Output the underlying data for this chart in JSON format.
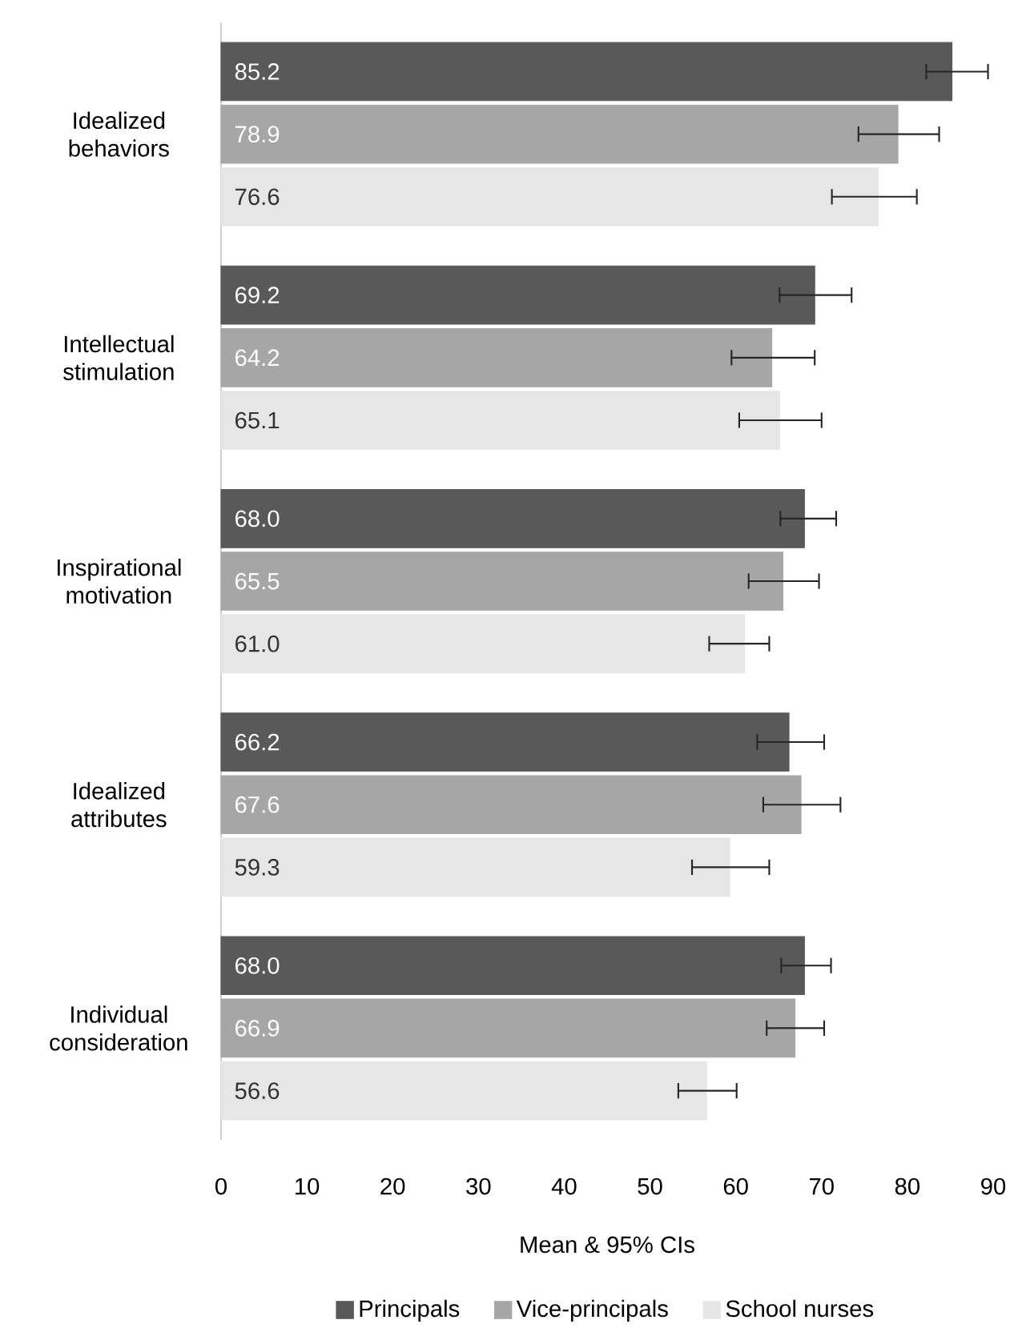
{
  "chart_data": {
    "type": "bar",
    "orientation": "horizontal",
    "xlabel": "Mean & 95% CIs",
    "categories": [
      "Idealized behaviors",
      "Intellectual stimulation",
      "Inspirational motivation",
      "Idealized attributes",
      "Individual consideration"
    ],
    "series": [
      {
        "name": "Principals",
        "color": "#595959",
        "values": [
          85.2,
          69.2,
          68.0,
          66.2,
          68.0
        ],
        "value_labels": [
          "85.2",
          "69.2",
          "68.0",
          "66.2",
          "68.0"
        ],
        "errors": [
          [
            82.1,
            89.5
          ],
          [
            65.0,
            73.6
          ],
          [
            65.1,
            71.8
          ],
          [
            62.4,
            70.4
          ],
          [
            65.2,
            71.2
          ]
        ]
      },
      {
        "name": "Vice-principals",
        "color": "#a6a6a6",
        "values": [
          78.9,
          64.2,
          65.5,
          67.6,
          66.9
        ],
        "value_labels": [
          "78.9",
          "64.2",
          "65.5",
          "67.6",
          "66.9"
        ],
        "errors": [
          [
            74.2,
            83.8
          ],
          [
            59.4,
            69.3
          ],
          [
            61.4,
            69.8
          ],
          [
            63.1,
            72.3
          ],
          [
            63.5,
            70.4
          ]
        ]
      },
      {
        "name": "School nurses",
        "color": "#e6e6e6",
        "values": [
          76.6,
          65.1,
          61.0,
          59.3,
          56.6
        ],
        "value_labels": [
          "76.6",
          "65.1",
          "61.0",
          "59.3",
          "56.6"
        ],
        "errors": [
          [
            71.1,
            81.2
          ],
          [
            60.3,
            70.1
          ],
          [
            56.8,
            64.0
          ],
          [
            54.8,
            64.0
          ],
          [
            53.2,
            60.2
          ]
        ]
      }
    ],
    "xlim": [
      0,
      90
    ],
    "xticks": [
      0,
      10,
      20,
      30,
      40,
      50,
      60,
      70,
      80,
      90
    ],
    "legend": "bottom"
  }
}
